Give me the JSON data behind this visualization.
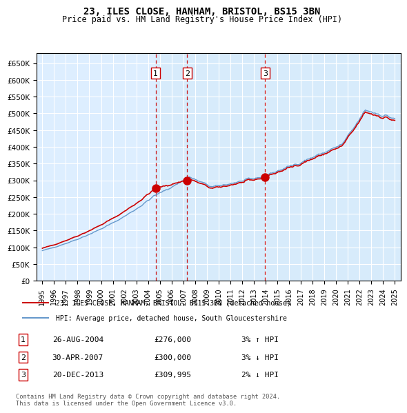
{
  "title1": "23, ILES CLOSE, HANHAM, BRISTOL, BS15 3BN",
  "title2": "Price paid vs. HM Land Registry's House Price Index (HPI)",
  "legend_line1": "23, ILES CLOSE, HANHAM, BRISTOL, BS15 3BN (detached house)",
  "legend_line2": "HPI: Average price, detached house, South Gloucestershire",
  "sale_dates": [
    2004.65,
    2007.33,
    2013.97
  ],
  "sale_prices": [
    276000,
    300000,
    309995
  ],
  "sale_labels": [
    "1",
    "2",
    "3"
  ],
  "transactions": [
    {
      "label": "1",
      "date": "26-AUG-2004",
      "price": "£276,000",
      "change": "3% ↑ HPI"
    },
    {
      "label": "2",
      "date": "30-APR-2007",
      "price": "£300,000",
      "change": "3% ↓ HPI"
    },
    {
      "label": "3",
      "date": "20-DEC-2013",
      "price": "£309,995",
      "change": "2% ↓ HPI"
    }
  ],
  "footer": "Contains HM Land Registry data © Crown copyright and database right 2024.\nThis data is licensed under the Open Government Licence v3.0.",
  "hpi_color": "#6699cc",
  "price_color": "#cc0000",
  "vline_color": "#cc0000",
  "bg_color": "#ddeeff",
  "grid_color": "#ffffff",
  "ylim": [
    0,
    680000
  ],
  "yticks": [
    0,
    50000,
    100000,
    150000,
    200000,
    250000,
    300000,
    350000,
    400000,
    450000,
    500000,
    550000,
    600000,
    650000
  ],
  "xlim_start": 1994.5,
  "xlim_end": 2025.5
}
